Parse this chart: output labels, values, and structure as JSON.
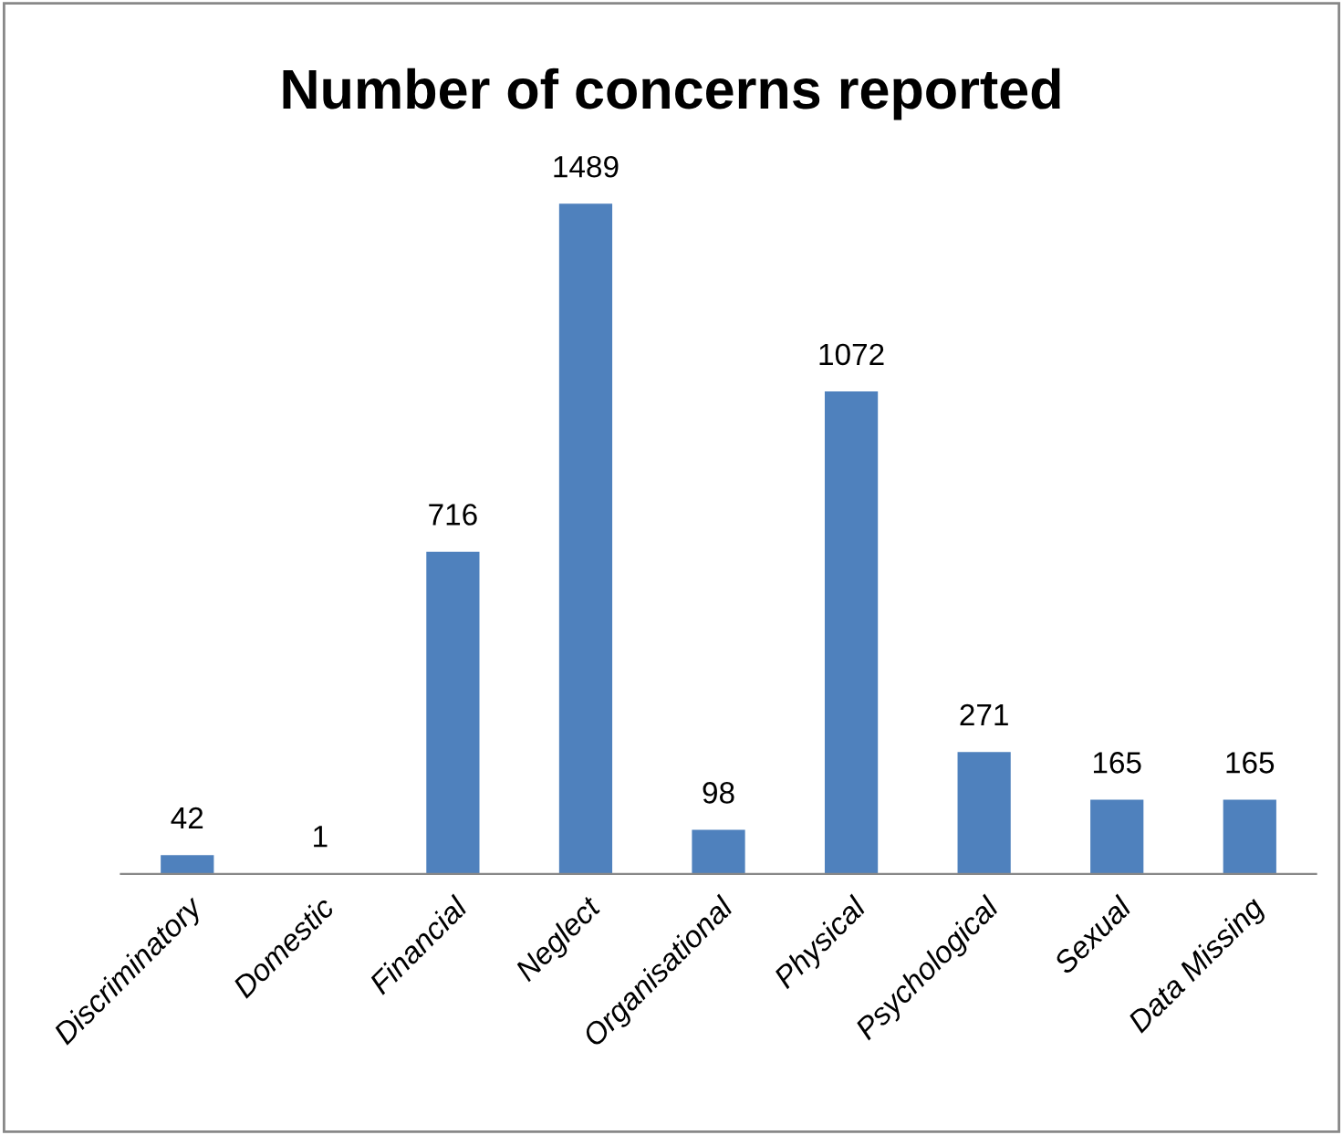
{
  "chart_data": {
    "type": "bar",
    "title": "Number of concerns reported",
    "categories": [
      "Discriminatory",
      "Domestic",
      "Financial",
      "Neglect",
      "Organisational",
      "Physical",
      "Psychological",
      "Sexual",
      "Data Missing"
    ],
    "values": [
      42,
      1,
      716,
      1489,
      98,
      1072,
      271,
      165,
      165
    ],
    "color": "#4f81bd",
    "data_labels": true,
    "grid": false,
    "legend": false
  }
}
